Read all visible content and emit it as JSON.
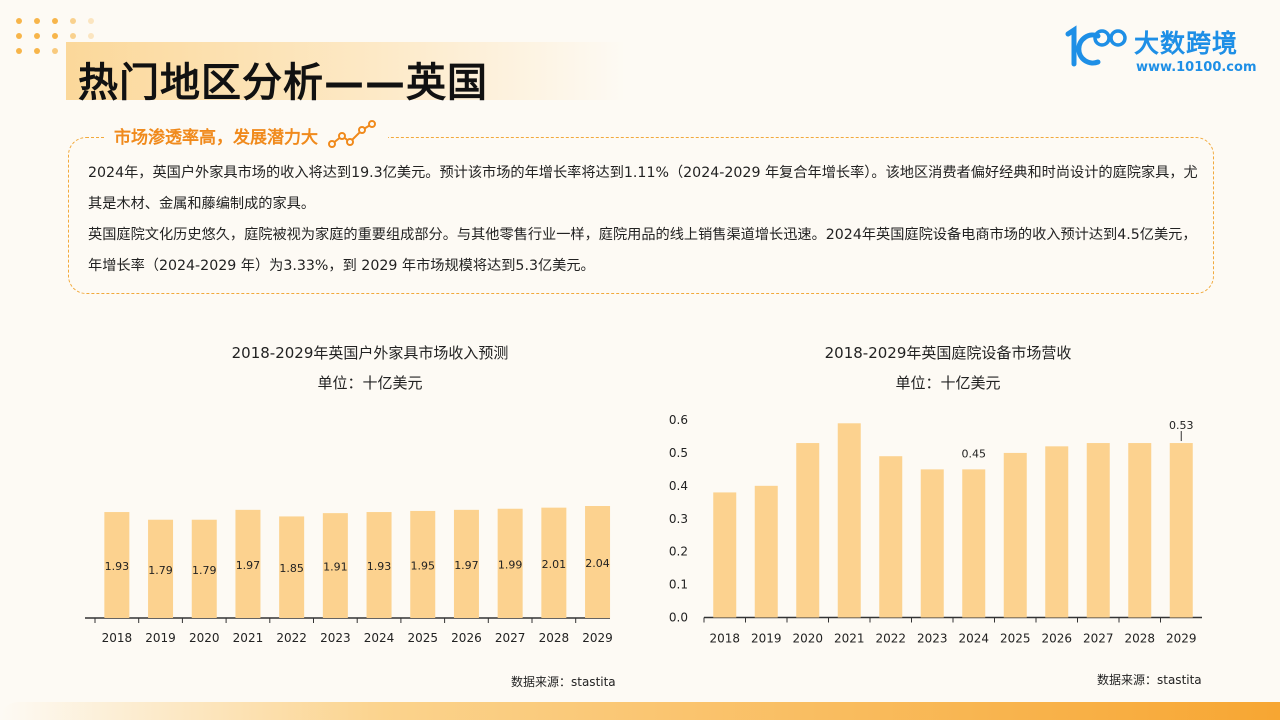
{
  "header": {
    "title": "热门地区分析——英国",
    "logo_name": "大数跨境",
    "logo_url": "www.10100.com"
  },
  "section": {
    "heading": "市场渗透率高，发展潜力大",
    "paragraphs": [
      "2024年，英国户外家具市场的收入将达到19.3亿美元。预计该市场的年增长率将达到1.11%（2024-2029 年复合年增长率）。该地区消费者偏好经典和时尚设计的庭院家具，尤其是木材、金属和藤编制成的家具。",
      "英国庭院文化历史悠久，庭院被视为家庭的重要组成部分。与其他零售行业一样，庭院用品的线上销售渠道增长迅速。2024年英国庭院设备电商市场的收入预计达到4.5亿美元，年增长率（2024-2029 年）为3.33%，到 2029 年市场规模将达到5.3亿美元。"
    ]
  },
  "colors": {
    "accent": "#f08a1c",
    "bar": "#fcd28f",
    "logo": "#1e8fe6"
  },
  "chart_data": [
    {
      "type": "bar",
      "title": "2018-2029年英国户外家具市场收入预测",
      "subtitle": "单位：十亿美元",
      "categories": [
        "2018",
        "2019",
        "2020",
        "2021",
        "2022",
        "2023",
        "2024",
        "2025",
        "2026",
        "2027",
        "2028",
        "2029"
      ],
      "values": [
        1.93,
        1.79,
        1.79,
        1.97,
        1.85,
        1.91,
        1.93,
        1.95,
        1.97,
        1.99,
        2.01,
        2.04
      ],
      "value_labels": [
        "1.93",
        "1.79",
        "1.79",
        "1.97",
        "1.85",
        "1.91",
        "1.93",
        "1.95",
        "1.97",
        "1.99",
        "2.01",
        "2.04"
      ],
      "ylim": [
        0,
        2.5
      ],
      "grid": false,
      "source": "数据来源：stastita"
    },
    {
      "type": "bar",
      "title": "2018-2029年英国庭院设备市场营收",
      "subtitle": "单位：十亿美元",
      "categories": [
        "2018",
        "2019",
        "2020",
        "2021",
        "2022",
        "2023",
        "2024",
        "2025",
        "2026",
        "2027",
        "2028",
        "2029"
      ],
      "values": [
        0.38,
        0.4,
        0.53,
        0.59,
        0.49,
        0.45,
        0.45,
        0.5,
        0.52,
        0.53,
        0.53,
        0.53
      ],
      "annotations": [
        {
          "category": "2024",
          "label": "0.45"
        },
        {
          "category": "2029",
          "label": "0.53"
        }
      ],
      "yticks": [
        "0.0",
        "0.1",
        "0.2",
        "0.3",
        "0.4",
        "0.5",
        "0.6"
      ],
      "ylim": [
        0,
        0.6
      ],
      "grid": false,
      "source": "数据来源：stastita"
    }
  ]
}
